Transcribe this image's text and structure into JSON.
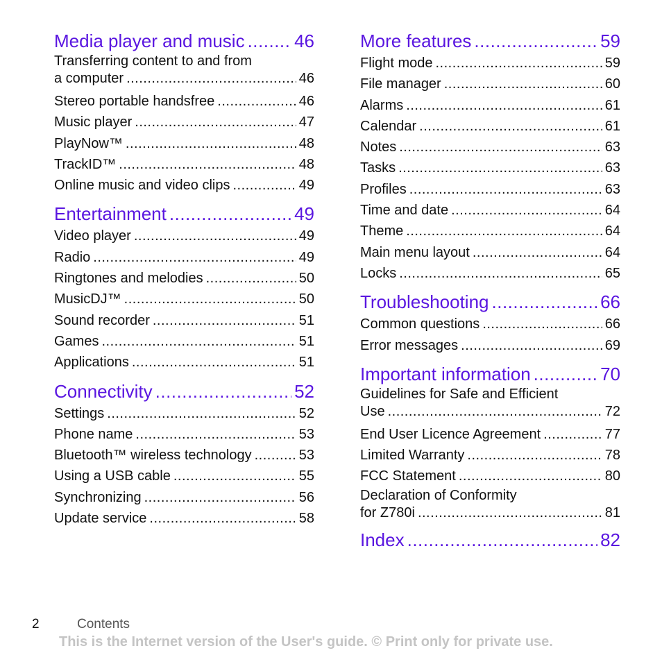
{
  "columns": [
    [
      {
        "title": "Media player and music",
        "page": "46",
        "entries": [
          {
            "pre": "Transferring content to and from",
            "title": "a computer",
            "page": "46"
          },
          {
            "title": "Stereo portable handsfree",
            "page": "46"
          },
          {
            "title": "Music player",
            "page": "47"
          },
          {
            "title": "PlayNow™",
            "page": "48"
          },
          {
            "title": "TrackID™",
            "page": "48"
          },
          {
            "title": "Online music and video clips",
            "page": "49"
          }
        ]
      },
      {
        "title": "Entertainment",
        "page": "49",
        "entries": [
          {
            "title": "Video player",
            "page": "49"
          },
          {
            "title": "Radio",
            "page": "49"
          },
          {
            "title": "Ringtones and melodies",
            "page": "50"
          },
          {
            "title": "MusicDJ™",
            "page": "50"
          },
          {
            "title": "Sound recorder",
            "page": "51"
          },
          {
            "title": "Games",
            "page": "51"
          },
          {
            "title": "Applications",
            "page": "51"
          }
        ]
      },
      {
        "title": "Connectivity",
        "page": "52",
        "entries": [
          {
            "title": "Settings",
            "page": "52"
          },
          {
            "title": "Phone name",
            "page": "53"
          },
          {
            "title": "Bluetooth™ wireless technology",
            "page": "53"
          },
          {
            "title": "Using a USB cable",
            "page": "55"
          },
          {
            "title": "Synchronizing",
            "page": "56"
          },
          {
            "title": "Update service",
            "page": "58"
          }
        ]
      }
    ],
    [
      {
        "title": "More features",
        "page": "59",
        "entries": [
          {
            "title": "Flight mode",
            "page": "59"
          },
          {
            "title": "File manager",
            "page": "60"
          },
          {
            "title": "Alarms",
            "page": "61"
          },
          {
            "title": "Calendar",
            "page": "61"
          },
          {
            "title": "Notes",
            "page": "63"
          },
          {
            "title": "Tasks",
            "page": "63"
          },
          {
            "title": "Profiles",
            "page": "63"
          },
          {
            "title": "Time and date",
            "page": "64"
          },
          {
            "title": "Theme",
            "page": "64"
          },
          {
            "title": "Main menu layout",
            "page": "64"
          },
          {
            "title": "Locks",
            "page": "65"
          }
        ]
      },
      {
        "title": "Troubleshooting",
        "page": "66",
        "entries": [
          {
            "title": "Common questions",
            "page": "66"
          },
          {
            "title": "Error messages",
            "page": "69"
          }
        ]
      },
      {
        "title": "Important information",
        "page": "70",
        "entries": [
          {
            "pre": "Guidelines for Safe and Efficient",
            "title": "Use",
            "page": "72"
          },
          {
            "title": "End User Licence Agreement",
            "page": "77"
          },
          {
            "title": "Limited Warranty",
            "page": "78"
          },
          {
            "title": "FCC Statement",
            "page": "80"
          },
          {
            "pre": "Declaration of Conformity",
            "title": "for Z780i",
            "page": "81"
          }
        ]
      },
      {
        "title": "Index",
        "page": "82",
        "entries": []
      }
    ]
  ],
  "footer": {
    "page_number": "2",
    "section": "Contents",
    "note": "This is the Internet version of the User's guide. © Print only for private use."
  },
  "colors": {
    "heading": "#5a16e0",
    "text": "#111111",
    "note": "#c4c4c4"
  }
}
